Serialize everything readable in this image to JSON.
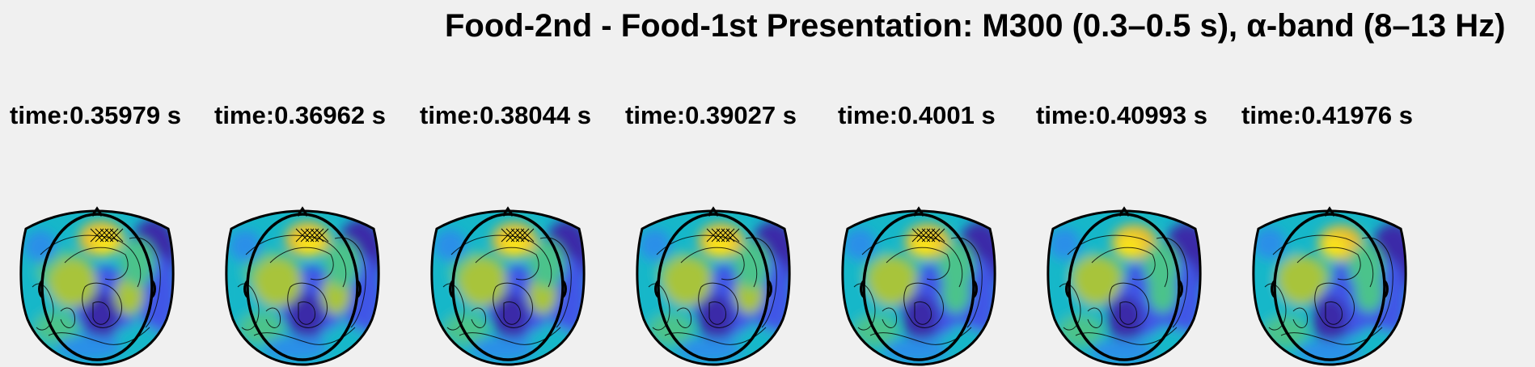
{
  "figure": {
    "title": "Food-2nd - Food-1st Presentation: M300 (0.3–0.5 s), α-band (8–13 Hz)"
  },
  "panels": [
    {
      "time_label": "time:0.35979 s",
      "variant": 0
    },
    {
      "time_label": "time:0.36962 s",
      "variant": 1
    },
    {
      "time_label": "time:0.38044 s",
      "variant": 2
    },
    {
      "time_label": "time:0.39027 s",
      "variant": 3
    },
    {
      "time_label": "time:0.4001 s",
      "variant": 4
    },
    {
      "time_label": "time:0.40993 s",
      "variant": 5
    },
    {
      "time_label": "time:0.41976 s",
      "variant": 6
    }
  ],
  "colors": {
    "background": "#f0f0f0",
    "colormap": [
      "#3b2aa8",
      "#3f57e6",
      "#2a8fe8",
      "#16b7c9",
      "#4cc38b",
      "#a8c43a",
      "#e9bd2e",
      "#f9e21e"
    ],
    "outline": "#000000"
  }
}
